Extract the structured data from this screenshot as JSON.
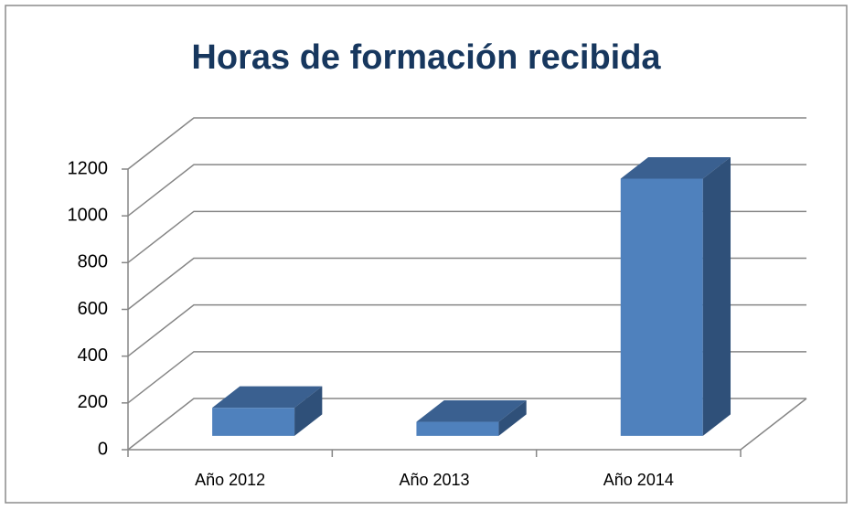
{
  "chart_data": {
    "type": "bar3d",
    "title": "Horas de formación recibida",
    "categories": [
      "Año 2012",
      "Año 2013",
      "Año 2014"
    ],
    "values": [
      120,
      60,
      1100
    ],
    "color": "#4f81bd",
    "ylim": [
      0,
      1200
    ],
    "yticks": [
      0,
      200,
      400,
      600,
      800,
      1000,
      1200
    ],
    "grid": true
  }
}
